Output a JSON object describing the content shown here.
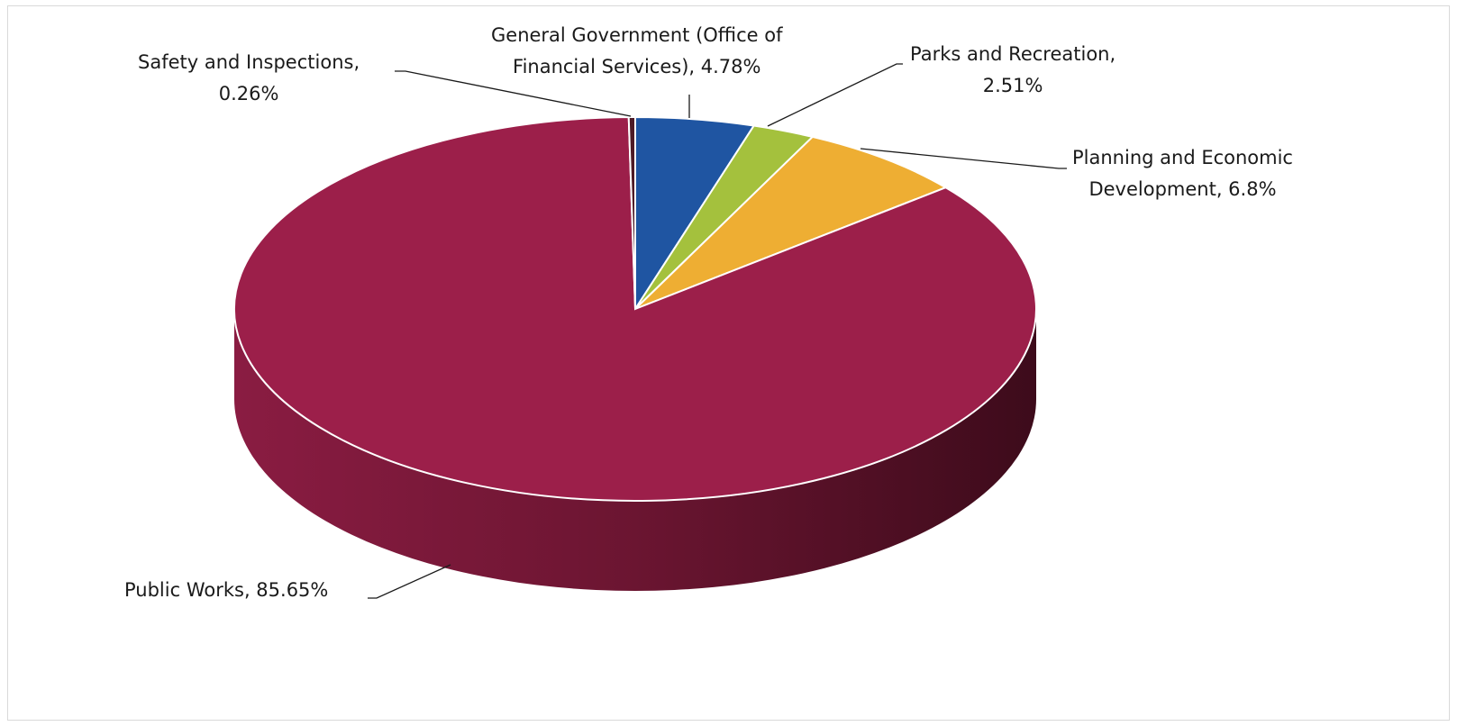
{
  "chart_data": {
    "type": "pie",
    "title": "",
    "slices": [
      {
        "label": [
          "General Government (Office of",
          "Financial Services), 4.78%"
        ],
        "name": "General Government (Office of Financial Services)",
        "value": 4.78,
        "color": "#1f55a2"
      },
      {
        "label": [
          "Parks and Recreation,",
          "2.51%"
        ],
        "name": "Parks and Recreation",
        "value": 2.51,
        "color": "#a4c13d"
      },
      {
        "label": [
          "Planning and Economic",
          "Development, 6.8%"
        ],
        "name": "Planning and Economic Development",
        "value": 6.8,
        "color": "#eeae33"
      },
      {
        "label": [
          "Public Works, 85.65%"
        ],
        "name": "Public Works",
        "value": 85.65,
        "color": "#9c1f4a"
      },
      {
        "label": [
          "Safety and Inspections,",
          "0.26%"
        ],
        "name": "Safety and Inspections",
        "value": 0.26,
        "color": "#4d1a26"
      }
    ],
    "style": "3d-pie",
    "legend": "none",
    "data_labels": "outside-with-leader-lines"
  }
}
